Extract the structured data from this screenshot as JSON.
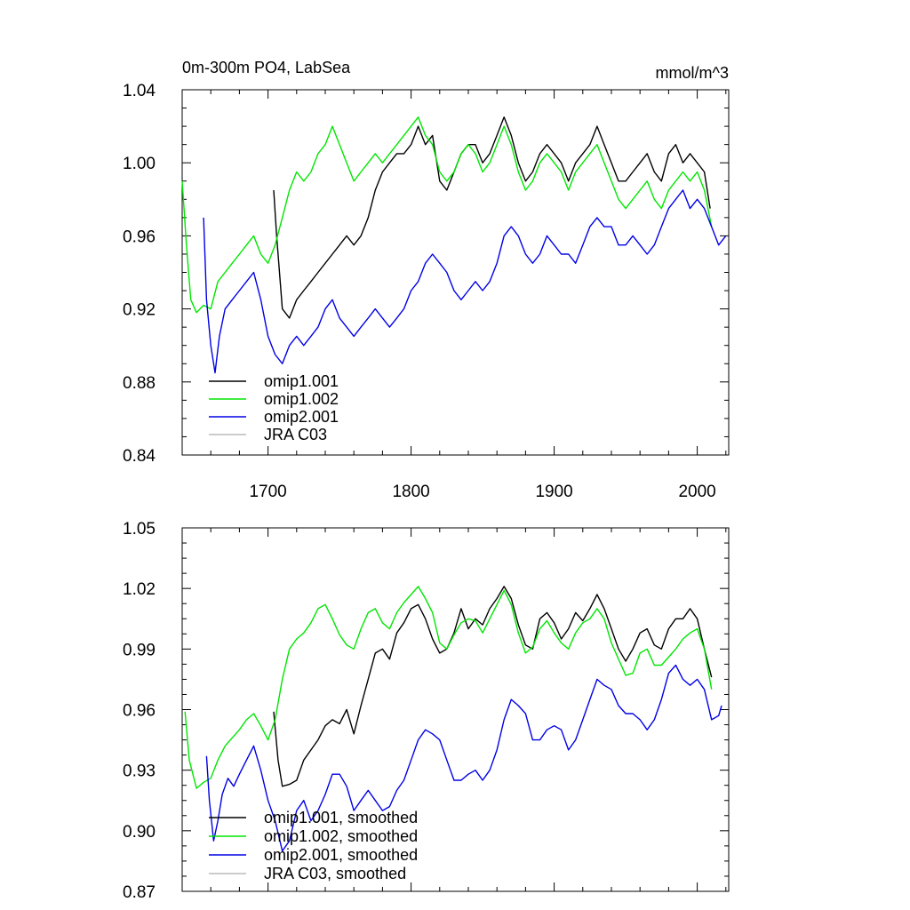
{
  "chart_data": [
    {
      "type": "line",
      "title": "0m-300m PO4, LabSea",
      "units": "mmol/m^3",
      "xlim": [
        1640,
        2022
      ],
      "ylim": [
        0.84,
        1.04
      ],
      "yticks": [
        "1.04",
        "1.00",
        "0.96",
        "0.92",
        "0.88",
        "0.84"
      ],
      "xticks": [
        "1700",
        "1800",
        "1900",
        "2000"
      ],
      "legend_position": "bottom-left",
      "series": [
        {
          "name": "omip1.001",
          "color": "#000000",
          "x": [
            1704,
            1706,
            1710,
            1715,
            1720,
            1725,
            1730,
            1735,
            1740,
            1745,
            1750,
            1755,
            1760,
            1765,
            1770,
            1775,
            1780,
            1785,
            1790,
            1795,
            1800,
            1805,
            1810,
            1815,
            1820,
            1825,
            1830,
            1835,
            1840,
            1845,
            1850,
            1855,
            1860,
            1865,
            1870,
            1875,
            1880,
            1885,
            1890,
            1895,
            1900,
            1905,
            1910,
            1915,
            1920,
            1925,
            1930,
            1935,
            1940,
            1945,
            1950,
            1955,
            1960,
            1965,
            1970,
            1975,
            1980,
            1985,
            1990,
            1995,
            2000,
            2005,
            2009
          ],
          "values": [
            0.985,
            0.96,
            0.92,
            0.915,
            0.925,
            0.93,
            0.935,
            0.94,
            0.945,
            0.95,
            0.955,
            0.96,
            0.955,
            0.96,
            0.97,
            0.985,
            0.995,
            1.0,
            1.005,
            1.005,
            1.01,
            1.02,
            1.01,
            1.015,
            0.99,
            0.985,
            0.995,
            1.005,
            1.01,
            1.01,
            1.0,
            1.005,
            1.015,
            1.025,
            1.015,
            1.0,
            0.99,
            0.995,
            1.005,
            1.01,
            1.005,
            1.0,
            0.99,
            1.0,
            1.005,
            1.01,
            1.02,
            1.01,
            1.0,
            0.99,
            0.99,
            0.995,
            1.0,
            1.005,
            0.995,
            0.99,
            1.005,
            1.01,
            1.0,
            1.005,
            1.0,
            0.995,
            0.975
          ]
        },
        {
          "name": "omip1.002",
          "color": "#00e600",
          "x": [
            1640,
            1643,
            1646,
            1650,
            1655,
            1660,
            1665,
            1670,
            1675,
            1680,
            1685,
            1690,
            1695,
            1700,
            1705,
            1710,
            1715,
            1720,
            1725,
            1730,
            1735,
            1740,
            1745,
            1750,
            1755,
            1760,
            1765,
            1770,
            1775,
            1780,
            1785,
            1790,
            1795,
            1800,
            1805,
            1810,
            1815,
            1820,
            1825,
            1830,
            1835,
            1840,
            1845,
            1850,
            1855,
            1860,
            1865,
            1870,
            1875,
            1880,
            1885,
            1890,
            1895,
            1900,
            1905,
            1910,
            1915,
            1920,
            1925,
            1930,
            1935,
            1940,
            1945,
            1950,
            1955,
            1960,
            1965,
            1970,
            1975,
            1980,
            1985,
            1990,
            1995,
            2000,
            2005,
            2010
          ],
          "values": [
            0.99,
            0.955,
            0.925,
            0.918,
            0.922,
            0.92,
            0.935,
            0.94,
            0.945,
            0.95,
            0.955,
            0.96,
            0.95,
            0.945,
            0.955,
            0.97,
            0.985,
            0.995,
            0.99,
            0.995,
            1.005,
            1.01,
            1.02,
            1.01,
            1.0,
            0.99,
            0.995,
            1.0,
            1.005,
            1.0,
            1.005,
            1.01,
            1.015,
            1.02,
            1.025,
            1.015,
            1.01,
            0.995,
            0.99,
            0.995,
            1.005,
            1.01,
            1.005,
            0.995,
            1.0,
            1.01,
            1.02,
            1.01,
            0.995,
            0.985,
            0.99,
            1.0,
            1.005,
            1.0,
            0.995,
            0.985,
            0.995,
            1.0,
            1.005,
            1.01,
            1.0,
            0.99,
            0.98,
            0.975,
            0.98,
            0.985,
            0.99,
            0.98,
            0.975,
            0.985,
            0.99,
            0.995,
            0.99,
            0.995,
            0.985,
            0.965
          ]
        },
        {
          "name": "omip2.001",
          "color": "#0000e6",
          "x": [
            1655,
            1657,
            1660,
            1663,
            1666,
            1670,
            1675,
            1680,
            1685,
            1690,
            1695,
            1700,
            1705,
            1710,
            1715,
            1720,
            1725,
            1730,
            1735,
            1740,
            1745,
            1750,
            1755,
            1760,
            1765,
            1770,
            1775,
            1780,
            1785,
            1790,
            1795,
            1800,
            1805,
            1810,
            1815,
            1820,
            1825,
            1830,
            1835,
            1840,
            1845,
            1850,
            1855,
            1860,
            1865,
            1870,
            1875,
            1880,
            1885,
            1890,
            1895,
            1900,
            1905,
            1910,
            1915,
            1920,
            1925,
            1930,
            1935,
            1940,
            1945,
            1950,
            1955,
            1960,
            1965,
            1970,
            1975,
            1980,
            1985,
            1990,
            1995,
            2000,
            2005,
            2010,
            2015,
            2020
          ],
          "values": [
            0.97,
            0.925,
            0.9,
            0.885,
            0.905,
            0.92,
            0.925,
            0.93,
            0.935,
            0.94,
            0.925,
            0.905,
            0.895,
            0.89,
            0.9,
            0.905,
            0.9,
            0.905,
            0.91,
            0.92,
            0.925,
            0.915,
            0.91,
            0.905,
            0.91,
            0.915,
            0.92,
            0.915,
            0.91,
            0.915,
            0.92,
            0.93,
            0.935,
            0.945,
            0.95,
            0.945,
            0.94,
            0.93,
            0.925,
            0.93,
            0.935,
            0.93,
            0.935,
            0.945,
            0.96,
            0.965,
            0.96,
            0.95,
            0.945,
            0.95,
            0.96,
            0.955,
            0.95,
            0.95,
            0.945,
            0.955,
            0.965,
            0.97,
            0.965,
            0.965,
            0.955,
            0.955,
            0.96,
            0.955,
            0.95,
            0.955,
            0.965,
            0.975,
            0.98,
            0.985,
            0.975,
            0.98,
            0.975,
            0.965,
            0.955,
            0.96
          ]
        },
        {
          "name": "JRA C03",
          "color": "#bbbbbb",
          "x": [],
          "values": []
        }
      ]
    },
    {
      "type": "line",
      "title": "",
      "units": "",
      "xlim": [
        1640,
        2022
      ],
      "ylim": [
        0.87,
        1.05
      ],
      "yticks": [
        "1.05",
        "1.02",
        "0.99",
        "0.96",
        "0.93",
        "0.90",
        "0.87"
      ],
      "xticks": [],
      "legend_position": "bottom-left",
      "series": [
        {
          "name": "omip1.001, smoothed",
          "color": "#000000",
          "x": [
            1704,
            1707,
            1710,
            1715,
            1720,
            1725,
            1730,
            1735,
            1740,
            1745,
            1750,
            1755,
            1760,
            1765,
            1770,
            1775,
            1780,
            1785,
            1790,
            1795,
            1800,
            1805,
            1810,
            1815,
            1820,
            1825,
            1830,
            1835,
            1840,
            1845,
            1850,
            1855,
            1860,
            1865,
            1870,
            1875,
            1880,
            1885,
            1890,
            1895,
            1900,
            1905,
            1910,
            1915,
            1920,
            1925,
            1930,
            1935,
            1940,
            1945,
            1950,
            1955,
            1960,
            1965,
            1970,
            1975,
            1980,
            1985,
            1990,
            1995,
            2000,
            2005,
            2010
          ],
          "values": [
            0.959,
            0.935,
            0.922,
            0.923,
            0.925,
            0.935,
            0.94,
            0.945,
            0.952,
            0.955,
            0.953,
            0.96,
            0.948,
            0.962,
            0.975,
            0.988,
            0.99,
            0.985,
            0.998,
            1.003,
            1.01,
            1.012,
            1.005,
            0.995,
            0.988,
            0.99,
            0.998,
            1.01,
            1.0,
            1.005,
            1.002,
            1.01,
            1.015,
            1.021,
            1.015,
            1.002,
            0.992,
            0.99,
            1.005,
            1.008,
            1.003,
            0.995,
            1.0,
            1.008,
            1.004,
            1.01,
            1.017,
            1.01,
            1.0,
            0.99,
            0.984,
            0.99,
            0.998,
            1.0,
            0.992,
            0.99,
            1.0,
            1.005,
            1.005,
            1.01,
            1.005,
            0.99,
            0.976
          ]
        },
        {
          "name": "omip1.002, smoothed",
          "color": "#00e600",
          "x": [
            1642,
            1645,
            1650,
            1655,
            1660,
            1665,
            1670,
            1675,
            1680,
            1685,
            1690,
            1695,
            1700,
            1705,
            1710,
            1715,
            1720,
            1725,
            1730,
            1735,
            1740,
            1745,
            1750,
            1755,
            1760,
            1765,
            1770,
            1775,
            1780,
            1785,
            1790,
            1795,
            1800,
            1805,
            1810,
            1815,
            1820,
            1825,
            1830,
            1835,
            1840,
            1845,
            1850,
            1855,
            1860,
            1865,
            1870,
            1875,
            1880,
            1885,
            1890,
            1895,
            1900,
            1905,
            1910,
            1915,
            1920,
            1925,
            1930,
            1935,
            1940,
            1945,
            1950,
            1955,
            1960,
            1965,
            1970,
            1975,
            1980,
            1985,
            1990,
            1995,
            2000,
            2005,
            2010
          ],
          "values": [
            0.959,
            0.935,
            0.921,
            0.924,
            0.926,
            0.935,
            0.942,
            0.946,
            0.95,
            0.955,
            0.958,
            0.952,
            0.945,
            0.955,
            0.975,
            0.99,
            0.995,
            0.998,
            1.003,
            1.01,
            1.012,
            1.005,
            0.997,
            0.992,
            0.99,
            1.0,
            1.008,
            1.01,
            1.003,
            1.0,
            1.008,
            1.013,
            1.017,
            1.021,
            1.015,
            1.008,
            0.993,
            0.99,
            0.997,
            1.003,
            1.005,
            1.004,
            0.998,
            1.005,
            1.012,
            1.019,
            1.012,
            0.998,
            0.988,
            0.991,
            1.0,
            1.004,
            0.998,
            0.993,
            0.99,
            0.998,
            1.003,
            1.005,
            1.01,
            1.005,
            0.993,
            0.985,
            0.977,
            0.978,
            0.988,
            0.99,
            0.982,
            0.982,
            0.986,
            0.99,
            0.995,
            0.998,
            1.0,
            0.99,
            0.97
          ]
        },
        {
          "name": "omip2.001, smoothed",
          "color": "#0000e6",
          "x": [
            1657,
            1659,
            1662,
            1665,
            1668,
            1672,
            1676,
            1680,
            1685,
            1690,
            1695,
            1700,
            1705,
            1710,
            1715,
            1720,
            1725,
            1730,
            1735,
            1740,
            1745,
            1750,
            1755,
            1760,
            1765,
            1770,
            1775,
            1780,
            1785,
            1790,
            1795,
            1800,
            1805,
            1810,
            1815,
            1820,
            1825,
            1830,
            1835,
            1840,
            1845,
            1850,
            1855,
            1860,
            1865,
            1870,
            1875,
            1880,
            1885,
            1890,
            1895,
            1900,
            1905,
            1910,
            1915,
            1920,
            1925,
            1930,
            1935,
            1940,
            1945,
            1950,
            1955,
            1960,
            1965,
            1970,
            1975,
            1980,
            1985,
            1990,
            1995,
            2000,
            2005,
            2010,
            2015,
            2017
          ],
          "values": [
            0.937,
            0.915,
            0.895,
            0.905,
            0.918,
            0.926,
            0.922,
            0.928,
            0.935,
            0.942,
            0.93,
            0.915,
            0.905,
            0.89,
            0.895,
            0.91,
            0.915,
            0.905,
            0.91,
            0.918,
            0.928,
            0.928,
            0.922,
            0.91,
            0.915,
            0.92,
            0.915,
            0.91,
            0.912,
            0.92,
            0.925,
            0.935,
            0.945,
            0.95,
            0.948,
            0.945,
            0.935,
            0.925,
            0.925,
            0.928,
            0.93,
            0.925,
            0.93,
            0.94,
            0.955,
            0.965,
            0.962,
            0.958,
            0.945,
            0.945,
            0.95,
            0.952,
            0.95,
            0.94,
            0.945,
            0.955,
            0.965,
            0.975,
            0.972,
            0.97,
            0.962,
            0.958,
            0.958,
            0.955,
            0.95,
            0.955,
            0.965,
            0.978,
            0.982,
            0.975,
            0.972,
            0.975,
            0.97,
            0.955,
            0.957,
            0.962
          ]
        },
        {
          "name": "JRA C03, smoothed",
          "color": "#bbbbbb",
          "x": [],
          "values": []
        }
      ]
    }
  ]
}
